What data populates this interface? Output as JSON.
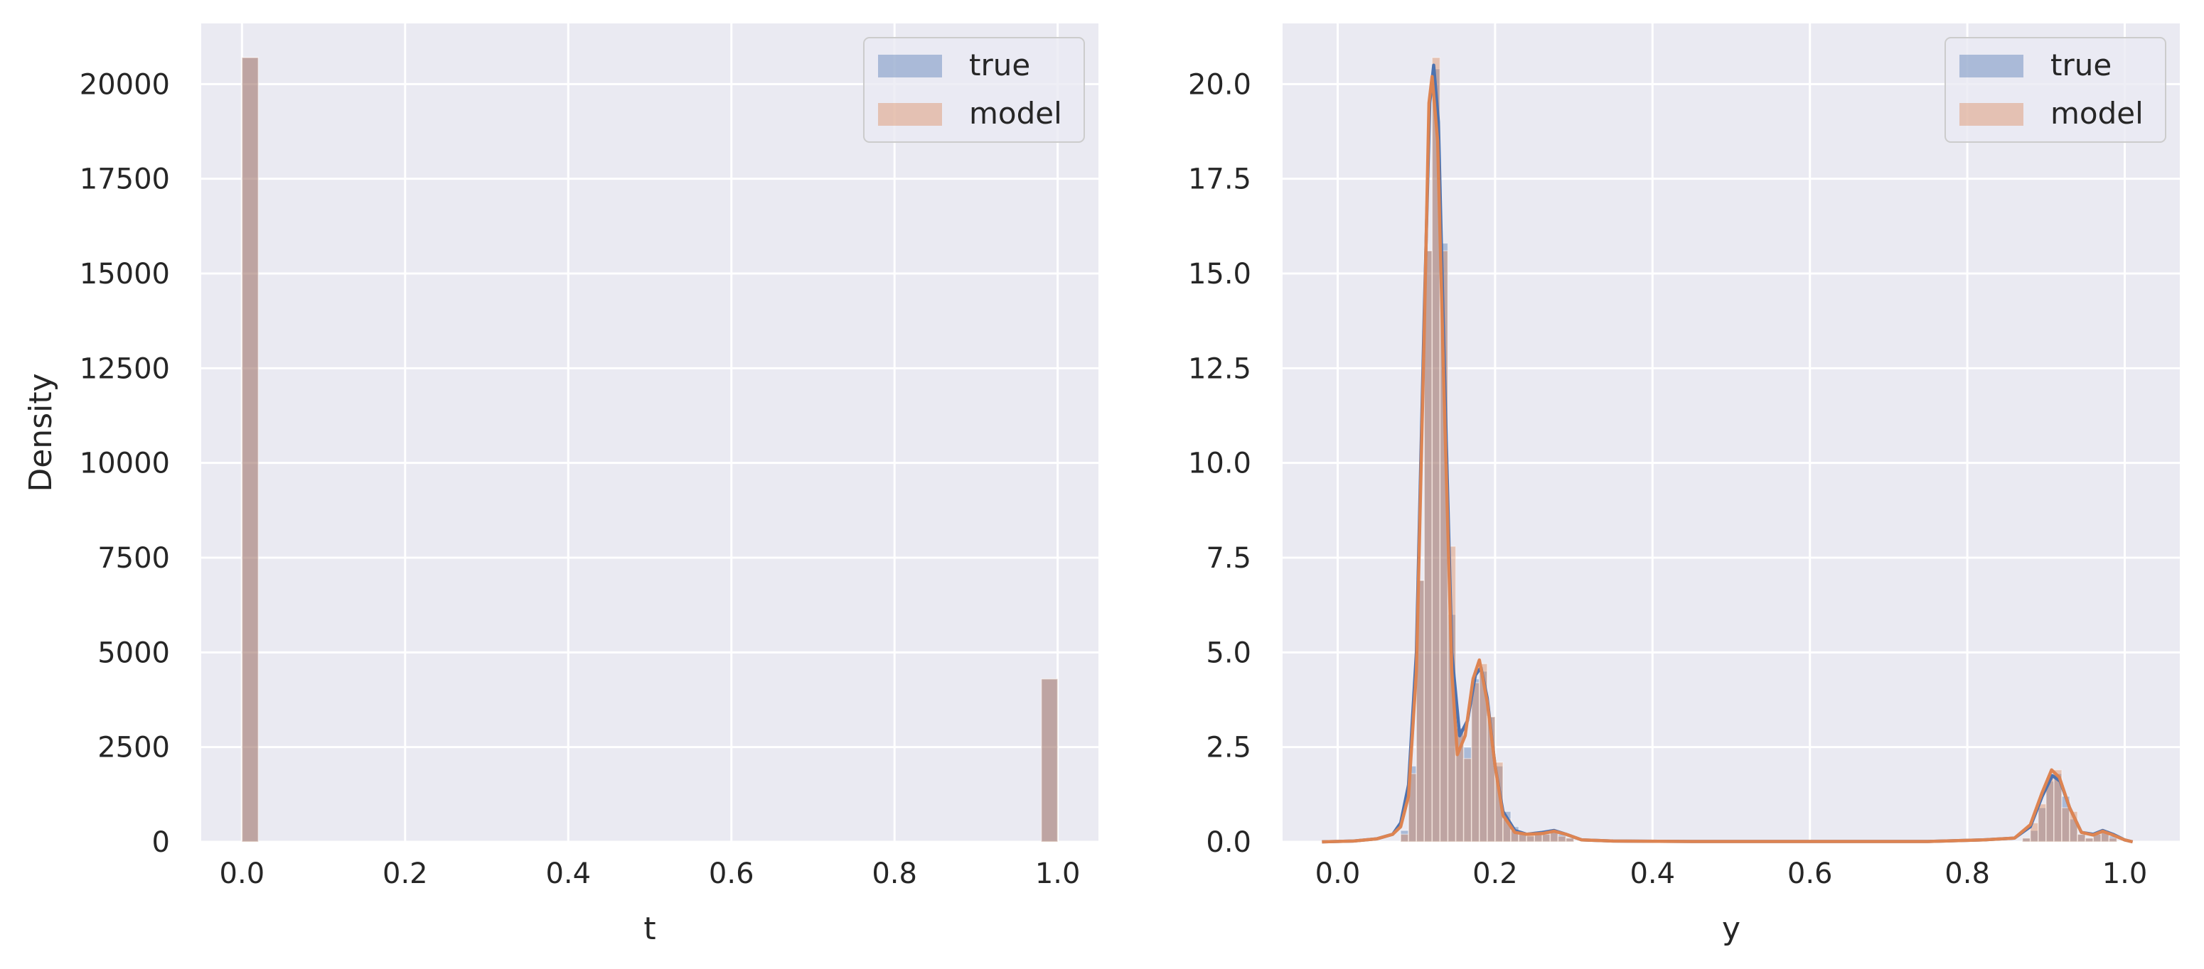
{
  "chart_data": [
    {
      "type": "histogram",
      "xlabel": "t",
      "ylabel": "Density",
      "xlim": [
        -0.05,
        1.05
      ],
      "ylim": [
        0,
        21600
      ],
      "xticks": [
        0.0,
        0.2,
        0.4,
        0.6,
        0.8,
        1.0
      ],
      "xtick_labels": [
        "0.0",
        "0.2",
        "0.4",
        "0.6",
        "0.8",
        "1.0"
      ],
      "yticks": [
        0,
        2500,
        5000,
        7500,
        10000,
        12500,
        15000,
        17500,
        20000
      ],
      "ytick_labels": [
        "0",
        "2500",
        "5000",
        "7500",
        "10000",
        "12500",
        "15000",
        "17500",
        "20000"
      ],
      "grid": true,
      "legend": "top-right",
      "bin_width": 0.02,
      "series": [
        {
          "name": "true",
          "color": "#4c72b0",
          "bars": [
            {
              "x": 0.01,
              "y": 20700
            },
            {
              "x": 0.99,
              "y": 4300
            }
          ]
        },
        {
          "name": "model",
          "color": "#dd8452",
          "bars": [
            {
              "x": 0.01,
              "y": 20700
            },
            {
              "x": 0.99,
              "y": 4300
            }
          ]
        }
      ]
    },
    {
      "type": "histogram",
      "xlabel": "y",
      "ylabel": "",
      "xlim": [
        -0.07,
        1.07
      ],
      "ylim": [
        0,
        21.6
      ],
      "xticks": [
        0.0,
        0.2,
        0.4,
        0.6,
        0.8,
        1.0
      ],
      "xtick_labels": [
        "0.0",
        "0.2",
        "0.4",
        "0.6",
        "0.8",
        "1.0"
      ],
      "yticks": [
        0.0,
        2.5,
        5.0,
        7.5,
        10.0,
        12.5,
        15.0,
        17.5,
        20.0
      ],
      "ytick_labels": [
        "0.0",
        "2.5",
        "5.0",
        "7.5",
        "10.0",
        "12.5",
        "15.0",
        "17.5",
        "20.0"
      ],
      "grid": true,
      "legend": "top-right",
      "bin_width": 0.01,
      "series": [
        {
          "name": "true",
          "color": "#4c72b0",
          "bars": [
            {
              "x": 0.085,
              "y": 0.3
            },
            {
              "x": 0.095,
              "y": 2.0
            },
            {
              "x": 0.105,
              "y": 6.9
            },
            {
              "x": 0.115,
              "y": 15.6
            },
            {
              "x": 0.125,
              "y": 20.4
            },
            {
              "x": 0.135,
              "y": 15.8
            },
            {
              "x": 0.145,
              "y": 6.0
            },
            {
              "x": 0.155,
              "y": 3.0
            },
            {
              "x": 0.165,
              "y": 2.5
            },
            {
              "x": 0.175,
              "y": 4.3
            },
            {
              "x": 0.185,
              "y": 4.5
            },
            {
              "x": 0.195,
              "y": 3.3
            },
            {
              "x": 0.205,
              "y": 2.0
            },
            {
              "x": 0.215,
              "y": 0.8
            },
            {
              "x": 0.225,
              "y": 0.4
            },
            {
              "x": 0.235,
              "y": 0.2
            },
            {
              "x": 0.245,
              "y": 0.15
            },
            {
              "x": 0.255,
              "y": 0.2
            },
            {
              "x": 0.265,
              "y": 0.25
            },
            {
              "x": 0.275,
              "y": 0.3
            },
            {
              "x": 0.285,
              "y": 0.2
            },
            {
              "x": 0.295,
              "y": 0.1
            },
            {
              "x": 0.875,
              "y": 0.1
            },
            {
              "x": 0.885,
              "y": 0.3
            },
            {
              "x": 0.895,
              "y": 0.9
            },
            {
              "x": 0.905,
              "y": 1.6
            },
            {
              "x": 0.915,
              "y": 1.8
            },
            {
              "x": 0.925,
              "y": 1.2
            },
            {
              "x": 0.935,
              "y": 0.6
            },
            {
              "x": 0.945,
              "y": 0.2
            },
            {
              "x": 0.955,
              "y": 0.1
            },
            {
              "x": 0.965,
              "y": 0.25
            },
            {
              "x": 0.975,
              "y": 0.3
            },
            {
              "x": 0.985,
              "y": 0.15
            }
          ],
          "kde": [
            {
              "x": -0.02,
              "y": 0
            },
            {
              "x": 0.02,
              "y": 0.02
            },
            {
              "x": 0.05,
              "y": 0.08
            },
            {
              "x": 0.07,
              "y": 0.2
            },
            {
              "x": 0.08,
              "y": 0.5
            },
            {
              "x": 0.09,
              "y": 1.5
            },
            {
              "x": 0.1,
              "y": 5.0
            },
            {
              "x": 0.11,
              "y": 14.0
            },
            {
              "x": 0.117,
              "y": 19.5
            },
            {
              "x": 0.122,
              "y": 20.5
            },
            {
              "x": 0.128,
              "y": 19.0
            },
            {
              "x": 0.135,
              "y": 13.0
            },
            {
              "x": 0.145,
              "y": 5.0
            },
            {
              "x": 0.155,
              "y": 2.8
            },
            {
              "x": 0.165,
              "y": 3.2
            },
            {
              "x": 0.175,
              "y": 4.4
            },
            {
              "x": 0.182,
              "y": 4.6
            },
            {
              "x": 0.19,
              "y": 3.8
            },
            {
              "x": 0.2,
              "y": 2.0
            },
            {
              "x": 0.21,
              "y": 0.8
            },
            {
              "x": 0.225,
              "y": 0.3
            },
            {
              "x": 0.24,
              "y": 0.2
            },
            {
              "x": 0.26,
              "y": 0.25
            },
            {
              "x": 0.275,
              "y": 0.3
            },
            {
              "x": 0.29,
              "y": 0.2
            },
            {
              "x": 0.31,
              "y": 0.05
            },
            {
              "x": 0.35,
              "y": 0.02
            },
            {
              "x": 0.45,
              "y": 0.01
            },
            {
              "x": 0.6,
              "y": 0.01
            },
            {
              "x": 0.75,
              "y": 0.01
            },
            {
              "x": 0.82,
              "y": 0.05
            },
            {
              "x": 0.86,
              "y": 0.1
            },
            {
              "x": 0.88,
              "y": 0.4
            },
            {
              "x": 0.895,
              "y": 1.2
            },
            {
              "x": 0.908,
              "y": 1.75
            },
            {
              "x": 0.918,
              "y": 1.6
            },
            {
              "x": 0.93,
              "y": 0.9
            },
            {
              "x": 0.945,
              "y": 0.25
            },
            {
              "x": 0.96,
              "y": 0.2
            },
            {
              "x": 0.972,
              "y": 0.3
            },
            {
              "x": 0.985,
              "y": 0.2
            },
            {
              "x": 1.0,
              "y": 0.05
            },
            {
              "x": 1.01,
              "y": 0
            }
          ]
        },
        {
          "name": "model",
          "color": "#dd8452",
          "bars": [
            {
              "x": 0.085,
              "y": 0.2
            },
            {
              "x": 0.095,
              "y": 1.8
            },
            {
              "x": 0.105,
              "y": 6.9
            },
            {
              "x": 0.115,
              "y": 15.6
            },
            {
              "x": 0.125,
              "y": 20.7
            },
            {
              "x": 0.135,
              "y": 15.6
            },
            {
              "x": 0.145,
              "y": 7.8
            },
            {
              "x": 0.155,
              "y": 3.0
            },
            {
              "x": 0.165,
              "y": 2.2
            },
            {
              "x": 0.175,
              "y": 4.2
            },
            {
              "x": 0.185,
              "y": 4.7
            },
            {
              "x": 0.195,
              "y": 3.3
            },
            {
              "x": 0.205,
              "y": 2.1
            },
            {
              "x": 0.215,
              "y": 0.6
            },
            {
              "x": 0.225,
              "y": 0.3
            },
            {
              "x": 0.235,
              "y": 0.2
            },
            {
              "x": 0.245,
              "y": 0.2
            },
            {
              "x": 0.255,
              "y": 0.2
            },
            {
              "x": 0.265,
              "y": 0.2
            },
            {
              "x": 0.275,
              "y": 0.25
            },
            {
              "x": 0.285,
              "y": 0.15
            },
            {
              "x": 0.295,
              "y": 0.1
            },
            {
              "x": 0.875,
              "y": 0.1
            },
            {
              "x": 0.885,
              "y": 0.5
            },
            {
              "x": 0.895,
              "y": 1.0
            },
            {
              "x": 0.905,
              "y": 1.7
            },
            {
              "x": 0.915,
              "y": 1.9
            },
            {
              "x": 0.925,
              "y": 0.9
            },
            {
              "x": 0.935,
              "y": 0.8
            },
            {
              "x": 0.945,
              "y": 0.2
            },
            {
              "x": 0.955,
              "y": 0.1
            },
            {
              "x": 0.965,
              "y": 0.2
            },
            {
              "x": 0.975,
              "y": 0.25
            },
            {
              "x": 0.985,
              "y": 0.1
            }
          ],
          "kde": [
            {
              "x": -0.02,
              "y": 0
            },
            {
              "x": 0.02,
              "y": 0.02
            },
            {
              "x": 0.05,
              "y": 0.08
            },
            {
              "x": 0.07,
              "y": 0.2
            },
            {
              "x": 0.08,
              "y": 0.4
            },
            {
              "x": 0.09,
              "y": 1.2
            },
            {
              "x": 0.1,
              "y": 4.5
            },
            {
              "x": 0.11,
              "y": 13.5
            },
            {
              "x": 0.116,
              "y": 19.5
            },
            {
              "x": 0.12,
              "y": 20.2
            },
            {
              "x": 0.127,
              "y": 18.5
            },
            {
              "x": 0.135,
              "y": 12.0
            },
            {
              "x": 0.145,
              "y": 4.5
            },
            {
              "x": 0.152,
              "y": 2.3
            },
            {
              "x": 0.162,
              "y": 2.8
            },
            {
              "x": 0.172,
              "y": 4.3
            },
            {
              "x": 0.18,
              "y": 4.8
            },
            {
              "x": 0.19,
              "y": 3.7
            },
            {
              "x": 0.2,
              "y": 2.0
            },
            {
              "x": 0.21,
              "y": 0.7
            },
            {
              "x": 0.225,
              "y": 0.25
            },
            {
              "x": 0.24,
              "y": 0.2
            },
            {
              "x": 0.26,
              "y": 0.22
            },
            {
              "x": 0.275,
              "y": 0.28
            },
            {
              "x": 0.29,
              "y": 0.2
            },
            {
              "x": 0.31,
              "y": 0.05
            },
            {
              "x": 0.35,
              "y": 0.02
            },
            {
              "x": 0.45,
              "y": 0.01
            },
            {
              "x": 0.6,
              "y": 0.01
            },
            {
              "x": 0.75,
              "y": 0.01
            },
            {
              "x": 0.82,
              "y": 0.05
            },
            {
              "x": 0.86,
              "y": 0.1
            },
            {
              "x": 0.88,
              "y": 0.45
            },
            {
              "x": 0.895,
              "y": 1.3
            },
            {
              "x": 0.907,
              "y": 1.9
            },
            {
              "x": 0.917,
              "y": 1.7
            },
            {
              "x": 0.93,
              "y": 0.9
            },
            {
              "x": 0.945,
              "y": 0.25
            },
            {
              "x": 0.96,
              "y": 0.18
            },
            {
              "x": 0.972,
              "y": 0.28
            },
            {
              "x": 0.985,
              "y": 0.18
            },
            {
              "x": 1.0,
              "y": 0.05
            },
            {
              "x": 1.01,
              "y": 0
            }
          ]
        }
      ]
    }
  ]
}
